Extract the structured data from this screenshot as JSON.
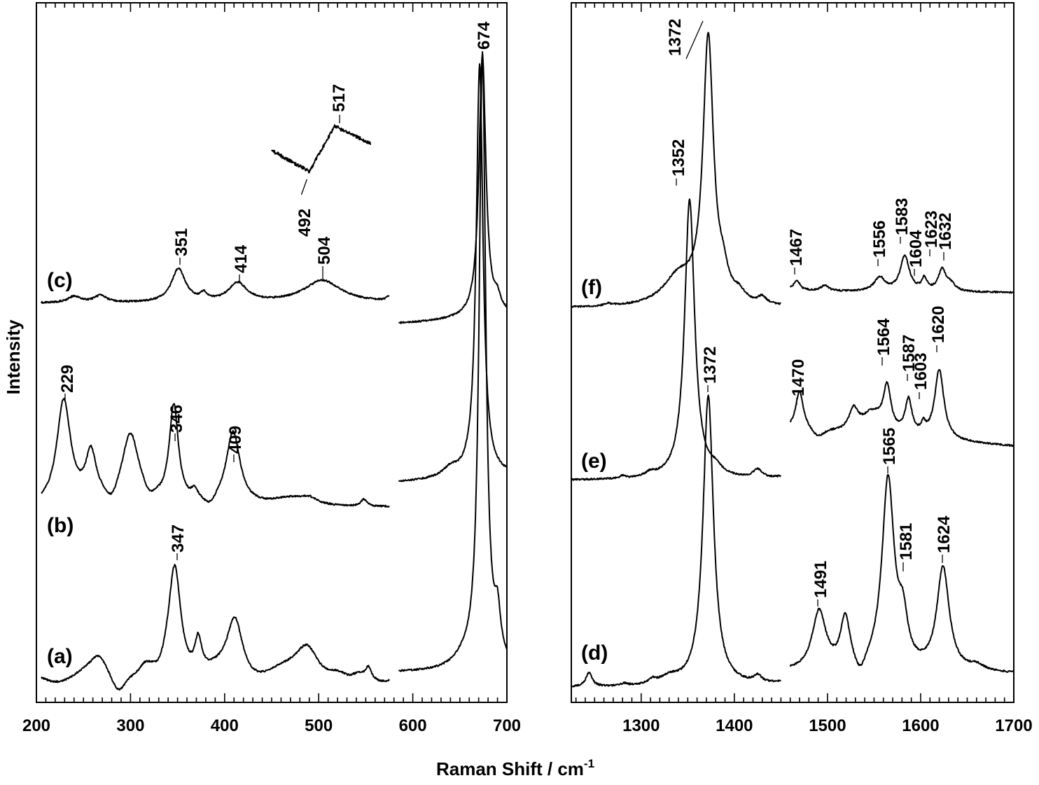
{
  "figure": {
    "xlabel_text": "Raman Shift / cm",
    "xlabel_sup": "-1",
    "ylabel": "Intensity"
  },
  "chart_data": [
    {
      "type": "line",
      "panel": "left",
      "xlabel": "Raman Shift / cm-1",
      "ylabel": "Intensity",
      "xlim": [
        200,
        700
      ],
      "x_ticks": [
        200,
        300,
        400,
        500,
        600,
        700
      ],
      "x_break": [
        575,
        585
      ],
      "grid": false,
      "series": [
        {
          "name": "(a)",
          "peaks": [
            {
              "x": 347,
              "label": "347"
            }
          ],
          "shoulders": [
            266,
            315,
            372,
            411,
            488,
            553,
            674,
            690
          ]
        },
        {
          "name": "(b)",
          "peaks": [
            {
              "x": 229,
              "label": "229"
            },
            {
              "x": 346,
              "label": "346"
            },
            {
              "x": 409,
              "label": "409"
            }
          ],
          "shoulders": [
            258,
            300,
            368,
            490,
            548,
            671
          ]
        },
        {
          "name": "(c)",
          "peaks": [
            {
              "x": 351,
              "label": "351"
            },
            {
              "x": 414,
              "label": "414"
            },
            {
              "x": 504,
              "label": "504"
            },
            {
              "x": 674,
              "label": "674"
            }
          ],
          "shoulders": [
            240,
            268,
            378
          ]
        }
      ],
      "inset": {
        "series": "(c)",
        "x_range": [
          450,
          555
        ],
        "labels": [
          {
            "x": 492,
            "label": "492",
            "feature": "minimum"
          },
          {
            "x": 517,
            "label": "517",
            "feature": "maximum"
          }
        ]
      }
    },
    {
      "type": "line",
      "panel": "right",
      "xlabel": "Raman Shift / cm-1",
      "xlim": [
        1225,
        1700
      ],
      "x_ticks": [
        1300,
        1400,
        1500,
        1600,
        1700
      ],
      "x_break": [
        1450,
        1460
      ],
      "grid": false,
      "series": [
        {
          "name": "(d)",
          "peaks": [
            {
              "x": 1372,
              "label": "1372"
            },
            {
              "x": 1491,
              "label": "1491"
            },
            {
              "x": 1565,
              "label": "1565"
            },
            {
              "x": 1581,
              "label": "1581"
            },
            {
              "x": 1624,
              "label": "1624"
            }
          ],
          "shoulders": [
            1244,
            1425,
            1519
          ]
        },
        {
          "name": "(e)",
          "peaks": [
            {
              "x": 1352,
              "label": "1352"
            },
            {
              "x": 1470,
              "label": "1470"
            },
            {
              "x": 1564,
              "label": "1564"
            },
            {
              "x": 1587,
              "label": "1587"
            },
            {
              "x": 1603,
              "label": "1603"
            },
            {
              "x": 1620,
              "label": "1620"
            }
          ],
          "shoulders": [
            1425,
            1528
          ]
        },
        {
          "name": "(f)",
          "peaks": [
            {
              "x": 1372,
              "label": "1372"
            },
            {
              "x": 1467,
              "label": "1467"
            },
            {
              "x": 1556,
              "label": "1556"
            },
            {
              "x": 1583,
              "label": "1583"
            },
            {
              "x": 1604,
              "label": "1604"
            },
            {
              "x": 1623,
              "label": "1623"
            },
            {
              "x": 1632,
              "label": "1632"
            }
          ],
          "shoulders": [
            1388,
            1430,
            1497
          ]
        }
      ]
    }
  ]
}
